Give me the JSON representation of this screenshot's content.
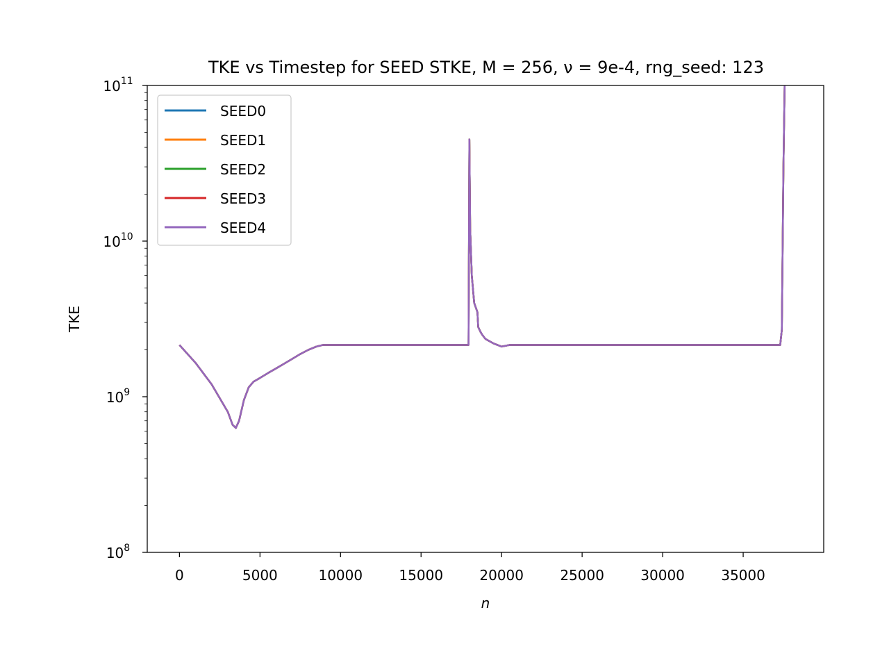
{
  "chart_data": {
    "type": "line",
    "title": "TKE vs Timestep for SEED STKE, M = 256, ν = 9e-4, rng_seed: 123",
    "xlabel": "n",
    "ylabel": "TKE",
    "xlim": [
      -2000,
      40000
    ],
    "ylim": [
      100000000.0,
      100000000000.0
    ],
    "yscale": "log",
    "x_ticks": [
      0,
      5000,
      10000,
      15000,
      20000,
      25000,
      30000,
      35000
    ],
    "x_tick_labels": [
      "0",
      "5000",
      "10000",
      "15000",
      "20000",
      "25000",
      "30000",
      "35000"
    ],
    "y_ticks": [
      {
        "value": 100000000.0,
        "base": "10",
        "exp": "8"
      },
      {
        "value": 1000000000.0,
        "base": "10",
        "exp": "9"
      },
      {
        "value": 10000000000.0,
        "base": "10",
        "exp": "10"
      },
      {
        "value": 100000000000.0,
        "base": "10",
        "exp": "11"
      }
    ],
    "grid": false,
    "legend_position": "top-left",
    "x": [
      0,
      1000,
      2000,
      3000,
      3300,
      3500,
      3700,
      4000,
      4300,
      4600,
      5000,
      5500,
      6000,
      6500,
      7000,
      7500,
      8000,
      8500,
      8900,
      12000,
      15000,
      17950,
      18000,
      18050,
      18150,
      18300,
      18500,
      18550,
      18700,
      18800,
      19000,
      19500,
      20000,
      20500,
      25000,
      30000,
      35000,
      37300,
      37400,
      37500,
      37600
    ],
    "series": [
      {
        "name": "SEED0",
        "color": "#1f77b4",
        "values": [
          2150000000.0,
          1650000000.0,
          1200000000.0,
          800000000.0,
          660000000.0,
          630000000.0,
          700000000.0,
          950000000.0,
          1150000000.0,
          1250000000.0,
          1320000000.0,
          1420000000.0,
          1520000000.0,
          1630000000.0,
          1750000000.0,
          1880000000.0,
          2000000000.0,
          2100000000.0,
          2150000000.0,
          2150000000.0,
          2150000000.0,
          2150000000.0,
          45000000000.0,
          12000000000.0,
          6000000000.0,
          4000000000.0,
          3500000000.0,
          2800000000.0,
          2600000000.0,
          2500000000.0,
          2350000000.0,
          2200000000.0,
          2100000000.0,
          2150000000.0,
          2150000000.0,
          2150000000.0,
          2150000000.0,
          2150000000.0,
          2700000000.0,
          30000000000.0,
          150000000000.0
        ]
      },
      {
        "name": "SEED1",
        "color": "#ff7f0e",
        "values": [
          2150000000.0,
          1650000000.0,
          1200000000.0,
          800000000.0,
          660000000.0,
          630000000.0,
          700000000.0,
          950000000.0,
          1150000000.0,
          1250000000.0,
          1320000000.0,
          1420000000.0,
          1520000000.0,
          1630000000.0,
          1750000000.0,
          1880000000.0,
          2000000000.0,
          2100000000.0,
          2150000000.0,
          2150000000.0,
          2150000000.0,
          2150000000.0,
          45000000000.0,
          12000000000.0,
          6000000000.0,
          4000000000.0,
          3500000000.0,
          2800000000.0,
          2600000000.0,
          2500000000.0,
          2350000000.0,
          2200000000.0,
          2100000000.0,
          2150000000.0,
          2150000000.0,
          2150000000.0,
          2150000000.0,
          2150000000.0,
          2700000000.0,
          30000000000.0,
          150000000000.0
        ]
      },
      {
        "name": "SEED2",
        "color": "#2ca02c",
        "values": [
          2150000000.0,
          1650000000.0,
          1200000000.0,
          800000000.0,
          660000000.0,
          630000000.0,
          700000000.0,
          950000000.0,
          1150000000.0,
          1250000000.0,
          1320000000.0,
          1420000000.0,
          1520000000.0,
          1630000000.0,
          1750000000.0,
          1880000000.0,
          2000000000.0,
          2100000000.0,
          2150000000.0,
          2150000000.0,
          2150000000.0,
          2150000000.0,
          45000000000.0,
          12000000000.0,
          6000000000.0,
          4000000000.0,
          3500000000.0,
          2800000000.0,
          2600000000.0,
          2500000000.0,
          2350000000.0,
          2200000000.0,
          2100000000.0,
          2150000000.0,
          2150000000.0,
          2150000000.0,
          2150000000.0,
          2150000000.0,
          2700000000.0,
          30000000000.0,
          150000000000.0
        ]
      },
      {
        "name": "SEED3",
        "color": "#d62728",
        "values": [
          2150000000.0,
          1650000000.0,
          1200000000.0,
          800000000.0,
          660000000.0,
          630000000.0,
          700000000.0,
          950000000.0,
          1150000000.0,
          1250000000.0,
          1320000000.0,
          1420000000.0,
          1520000000.0,
          1630000000.0,
          1750000000.0,
          1880000000.0,
          2000000000.0,
          2100000000.0,
          2150000000.0,
          2150000000.0,
          2150000000.0,
          2150000000.0,
          45000000000.0,
          12000000000.0,
          6000000000.0,
          4000000000.0,
          3500000000.0,
          2800000000.0,
          2600000000.0,
          2500000000.0,
          2350000000.0,
          2200000000.0,
          2100000000.0,
          2150000000.0,
          2150000000.0,
          2150000000.0,
          2150000000.0,
          2150000000.0,
          2700000000.0,
          30000000000.0,
          150000000000.0
        ]
      },
      {
        "name": "SEED4",
        "color": "#9467bd",
        "values": [
          2150000000.0,
          1650000000.0,
          1200000000.0,
          800000000.0,
          660000000.0,
          630000000.0,
          700000000.0,
          950000000.0,
          1150000000.0,
          1250000000.0,
          1320000000.0,
          1420000000.0,
          1520000000.0,
          1630000000.0,
          1750000000.0,
          1880000000.0,
          2000000000.0,
          2100000000.0,
          2150000000.0,
          2150000000.0,
          2150000000.0,
          2150000000.0,
          45000000000.0,
          12000000000.0,
          6000000000.0,
          4000000000.0,
          3500000000.0,
          2800000000.0,
          2600000000.0,
          2500000000.0,
          2350000000.0,
          2200000000.0,
          2100000000.0,
          2150000000.0,
          2150000000.0,
          2150000000.0,
          2150000000.0,
          2150000000.0,
          2700000000.0,
          30000000000.0,
          150000000000.0
        ]
      }
    ]
  }
}
